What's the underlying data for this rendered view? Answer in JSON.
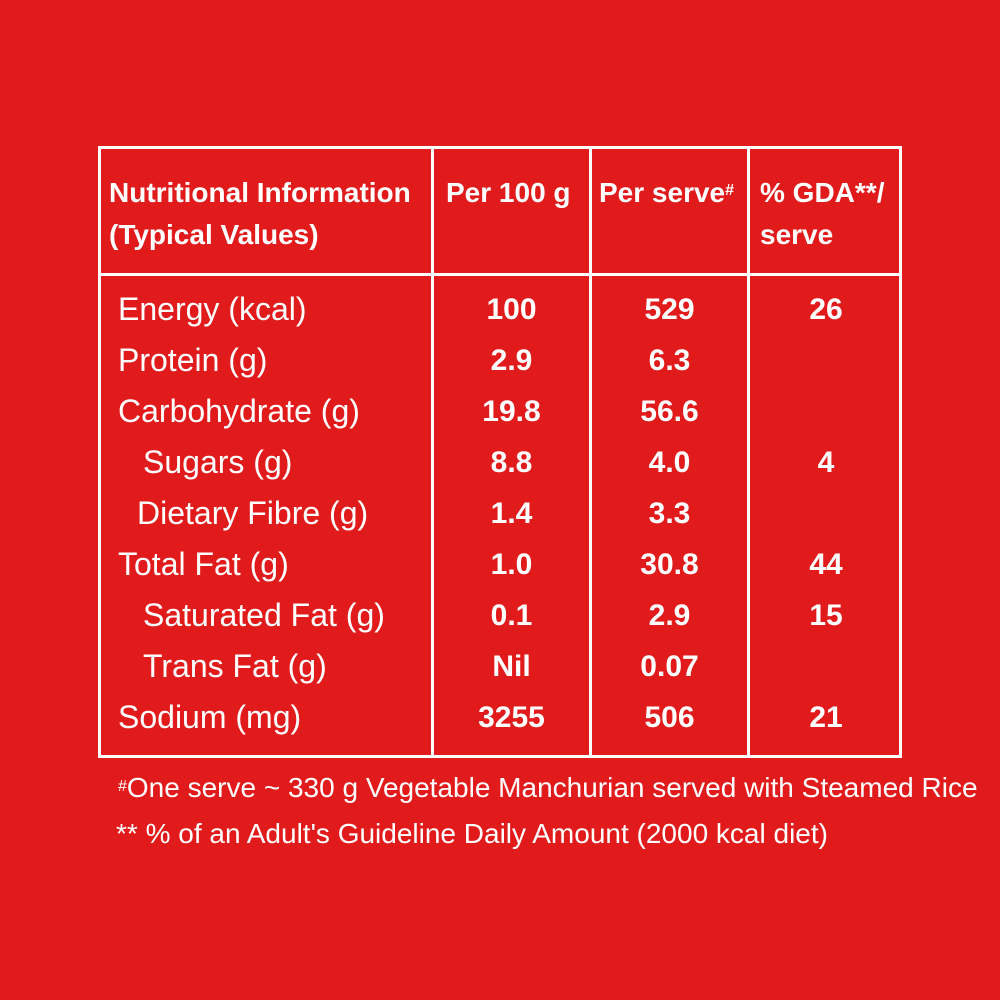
{
  "header": {
    "name_line1": "Nutritional Information",
    "name_line2": "(Typical Values)",
    "col1": "Per 100 g",
    "col2": "Per serve",
    "col2_mark": "#",
    "col3_line1": "% GDA**/",
    "col3_line2": "serve"
  },
  "rows": [
    {
      "name": "Energy (kcal)",
      "per100": "100",
      "perserve": "529",
      "gda": "26"
    },
    {
      "name": "Protein (g)",
      "per100": "2.9",
      "perserve": "6.3",
      "gda": ""
    },
    {
      "name": "Carbohydrate (g)",
      "per100": "19.8",
      "perserve": "56.6",
      "gda": ""
    },
    {
      "name": "Sugars (g)",
      "per100": "8.8",
      "perserve": "4.0",
      "gda": "4"
    },
    {
      "name": "Dietary Fibre (g)",
      "per100": "1.4",
      "perserve": "3.3",
      "gda": ""
    },
    {
      "name": "Total Fat (g)",
      "per100": "1.0",
      "perserve": "30.8",
      "gda": "44"
    },
    {
      "name": "Saturated Fat (g)",
      "per100": "0.1",
      "perserve": "2.9",
      "gda": "15"
    },
    {
      "name": "Trans Fat (g)",
      "per100": "Nil",
      "perserve": "0.07",
      "gda": ""
    },
    {
      "name": "Sodium (mg)",
      "per100": "3255",
      "perserve": "506",
      "gda": "21"
    }
  ],
  "footnotes": {
    "serve_mark": "#",
    "serve_note": "One serve ~ 330 g Vegetable Manchurian served with Steamed Rice",
    "gda_note": "** % of an Adult's Guideline Daily Amount (2000 kcal diet)"
  },
  "colors": {
    "background": "#e11b1b",
    "text": "#ffffff"
  }
}
